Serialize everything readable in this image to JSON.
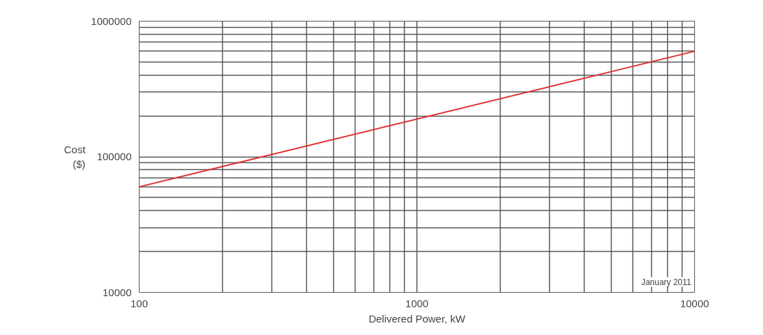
{
  "chart_data": {
    "type": "line",
    "xlabel": "Delivered Power, kW",
    "ylabel": "Cost\n($)",
    "log": "xy",
    "x": [
      100,
      10000
    ],
    "series": [
      {
        "color": "#e03030",
        "values": [
          60000,
          600000
        ]
      }
    ],
    "xlim": [
      100,
      10000
    ],
    "ylim": [
      10000,
      1000000
    ],
    "xticks": [
      100,
      {
        "value": 200,
        "label": null
      },
      {
        "value": 300,
        "label": null
      },
      {
        "value": 400,
        "label": null
      },
      {
        "value": 500,
        "label": null
      },
      {
        "value": 600,
        "label": null
      },
      {
        "value": 700,
        "label": null
      },
      {
        "value": 800,
        "label": null
      },
      {
        "value": 900,
        "label": null
      },
      1000,
      {
        "value": 2000,
        "label": null
      },
      {
        "value": 3000,
        "label": null
      },
      {
        "value": 4000,
        "label": null
      },
      {
        "value": 5000,
        "label": null
      },
      {
        "value": 6000,
        "label": null
      },
      {
        "value": 7000,
        "label": null
      },
      {
        "value": 8000,
        "label": null
      },
      {
        "value": 9000,
        "label": null
      },
      10000
    ],
    "yticks": [
      10000,
      {
        "value": 20000,
        "label": null
      },
      {
        "value": 30000,
        "label": null
      },
      {
        "value": 40000,
        "label": null
      },
      {
        "value": 50000,
        "label": null
      },
      {
        "value": 60000,
        "label": null
      },
      {
        "value": 70000,
        "label": null
      },
      {
        "value": 80000,
        "label": null
      },
      {
        "value": 90000,
        "label": null
      },
      100000,
      {
        "value": 200000,
        "label": null
      },
      {
        "value": 300000,
        "label": null
      },
      {
        "value": 400000,
        "label": null
      },
      {
        "value": 500000,
        "label": null
      },
      {
        "value": 600000,
        "label": null
      },
      {
        "value": 700000,
        "label": null
      },
      {
        "value": 800000,
        "label": null
      },
      {
        "value": 900000,
        "label": null
      },
      1000000
    ],
    "grid": true,
    "line_style": "solid",
    "marker": "none",
    "annotations": [
      "January 2011"
    ]
  }
}
